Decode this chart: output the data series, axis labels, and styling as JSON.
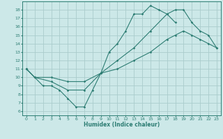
{
  "xlabel": "Humidex (Indice chaleur)",
  "xlim": [
    -0.5,
    23.5
  ],
  "ylim": [
    5.5,
    19.0
  ],
  "yticks": [
    6,
    7,
    8,
    9,
    10,
    11,
    12,
    13,
    14,
    15,
    16,
    17,
    18
  ],
  "xticks": [
    0,
    1,
    2,
    3,
    4,
    5,
    6,
    7,
    8,
    9,
    10,
    11,
    12,
    13,
    14,
    15,
    16,
    17,
    18,
    19,
    20,
    21,
    22,
    23
  ],
  "bg_color": "#cce8e8",
  "grid_color": "#aacccc",
  "line_color": "#2d7d73",
  "line1_x": [
    0,
    1,
    2,
    3,
    4,
    5,
    6,
    7,
    8,
    9,
    10,
    11,
    12,
    13,
    14,
    15,
    16,
    17,
    18
  ],
  "line1_y": [
    11,
    10,
    9,
    9,
    8.5,
    7.5,
    6.5,
    6.5,
    8.5,
    10.5,
    13,
    14,
    15.5,
    17.5,
    17.5,
    18.5,
    18,
    17.5,
    16.5
  ],
  "line2_x": [
    0,
    1,
    3,
    5,
    7,
    9,
    11,
    13,
    15,
    17,
    18,
    19,
    20,
    21,
    22,
    23
  ],
  "line2_y": [
    11,
    10,
    10,
    9.5,
    9.5,
    10.5,
    11,
    12,
    13,
    14.5,
    15,
    15.5,
    15,
    14.5,
    14,
    13.5
  ],
  "line3_x": [
    0,
    1,
    3,
    5,
    7,
    9,
    11,
    13,
    15,
    17,
    18,
    19,
    20,
    21,
    22,
    23
  ],
  "line3_y": [
    11,
    10,
    9.5,
    8.5,
    8.5,
    10.5,
    12,
    13.5,
    15.5,
    17.5,
    18,
    18,
    16.5,
    15.5,
    15,
    13.5
  ]
}
